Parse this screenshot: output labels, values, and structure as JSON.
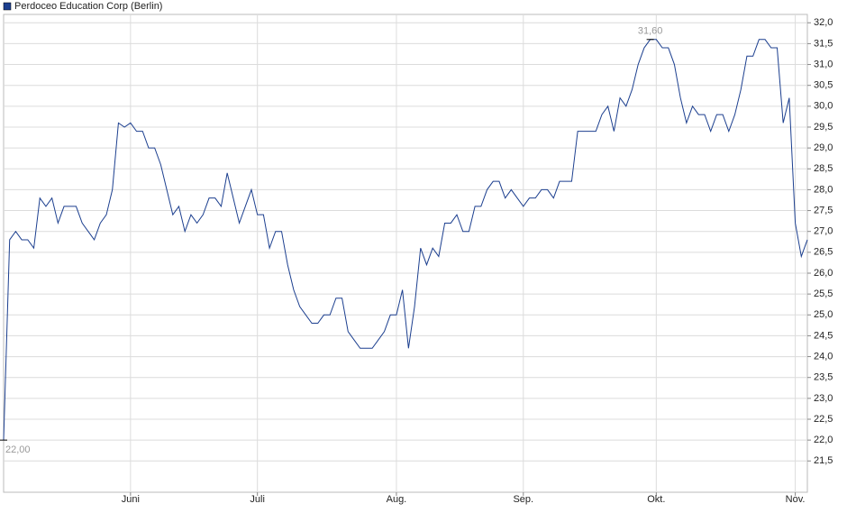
{
  "chart_data": {
    "type": "line",
    "series": [
      {
        "name": "Perdoceo Education Corp (Berlin)",
        "color": "#1c3f8f",
        "values": [
          22.0,
          26.8,
          27.0,
          26.8,
          26.8,
          26.6,
          27.8,
          27.6,
          27.8,
          27.2,
          27.6,
          27.6,
          27.6,
          27.2,
          27.0,
          26.8,
          27.2,
          27.4,
          28.0,
          29.6,
          29.5,
          29.6,
          29.4,
          29.4,
          29.0,
          29.0,
          28.6,
          28.0,
          27.4,
          27.6,
          27.0,
          27.4,
          27.2,
          27.4,
          27.8,
          27.8,
          27.6,
          28.4,
          27.8,
          27.2,
          27.6,
          28.0,
          27.4,
          27.4,
          26.6,
          27.0,
          27.0,
          26.2,
          25.6,
          25.2,
          25.0,
          24.8,
          24.8,
          25.0,
          25.0,
          25.4,
          25.4,
          24.6,
          24.4,
          24.2,
          24.2,
          24.2,
          24.4,
          24.6,
          25.0,
          25.0,
          25.6,
          24.2,
          25.2,
          26.6,
          26.2,
          26.6,
          26.4,
          27.2,
          27.2,
          27.4,
          27.0,
          27.0,
          27.6,
          27.6,
          28.0,
          28.2,
          28.2,
          27.8,
          28.0,
          27.8,
          27.6,
          27.8,
          27.8,
          28.0,
          28.0,
          27.8,
          28.2,
          28.2,
          28.2,
          29.4,
          29.4,
          29.4,
          29.4,
          29.8,
          30.0,
          29.4,
          30.2,
          30.0,
          30.4,
          31.0,
          31.4,
          31.6,
          31.6,
          31.4,
          31.4,
          31.0,
          30.2,
          29.6,
          30.0,
          29.8,
          29.8,
          29.4,
          29.8,
          29.8,
          29.4,
          29.8,
          30.4,
          31.2,
          31.2,
          31.6,
          31.6,
          31.4,
          31.4,
          29.6,
          30.2,
          27.2,
          26.4,
          26.8
        ]
      }
    ],
    "categories": [
      null,
      null,
      null,
      null,
      null,
      null,
      null,
      null,
      null,
      null,
      null,
      null,
      null,
      null,
      null,
      null,
      null,
      null,
      null,
      null,
      null,
      "Juni",
      null,
      null,
      null,
      null,
      null,
      null,
      null,
      null,
      null,
      null,
      null,
      null,
      null,
      null,
      null,
      null,
      null,
      null,
      null,
      null,
      "Juli",
      null,
      null,
      null,
      null,
      null,
      null,
      null,
      null,
      null,
      null,
      null,
      null,
      null,
      null,
      null,
      null,
      null,
      null,
      null,
      null,
      null,
      null,
      "Aug.",
      null,
      null,
      null,
      null,
      null,
      null,
      null,
      null,
      null,
      null,
      null,
      null,
      null,
      null,
      null,
      null,
      null,
      null,
      null,
      null,
      "Sep.",
      null,
      null,
      null,
      null,
      null,
      null,
      null,
      null,
      null,
      null,
      null,
      null,
      null,
      null,
      null,
      null,
      null,
      null,
      null,
      null,
      null,
      "Okt.",
      null,
      null,
      null,
      null,
      null,
      null,
      null,
      null,
      null,
      null,
      null,
      null,
      null,
      null,
      null,
      null,
      null,
      null,
      null,
      null,
      null,
      null,
      "Nov.",
      null,
      null
    ],
    "ylim": [
      20.75,
      32.2
    ],
    "yticks": [
      {
        "value": 21.5,
        "label": "21,5"
      },
      {
        "value": 22,
        "label": "22,0"
      },
      {
        "value": 22.5,
        "label": "22,5"
      },
      {
        "value": 23,
        "label": "23,0"
      },
      {
        "value": 23.5,
        "label": "23,5"
      },
      {
        "value": 24,
        "label": "24,0"
      },
      {
        "value": 24.5,
        "label": "24,5"
      },
      {
        "value": 25,
        "label": "25,0"
      },
      {
        "value": 25.5,
        "label": "25,5"
      },
      {
        "value": 26,
        "label": "26,0"
      },
      {
        "value": 26.5,
        "label": "26,5"
      },
      {
        "value": 27,
        "label": "27,0"
      },
      {
        "value": 27.5,
        "label": "27,5"
      },
      {
        "value": 28,
        "label": "28,0"
      },
      {
        "value": 28.5,
        "label": "28,5"
      },
      {
        "value": 29,
        "label": "29,0"
      },
      {
        "value": 29.5,
        "label": "29,5"
      },
      {
        "value": 30,
        "label": "30,0"
      },
      {
        "value": 30.5,
        "label": "30,5"
      },
      {
        "value": 31,
        "label": "31,0"
      },
      {
        "value": 31.5,
        "label": "31,5"
      },
      {
        "value": 32,
        "label": "32,0"
      }
    ],
    "grid": true,
    "high": {
      "value": 31.6,
      "label": "31,60"
    },
    "low": {
      "value": 22.0,
      "label": "22,00"
    }
  }
}
